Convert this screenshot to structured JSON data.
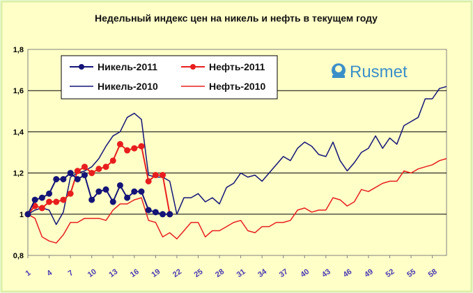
{
  "chart_data": {
    "type": "line",
    "title": "Недельный индекс цен на никель и нефть в текущем году",
    "xlabel": "",
    "ylabel": "",
    "ylim": [
      0.8,
      1.8
    ],
    "yticks": [
      "0,8",
      "1",
      "1,2",
      "1,4",
      "1,6",
      "1,8"
    ],
    "xlim": [
      1,
      60
    ],
    "xticks": [
      1,
      4,
      7,
      10,
      13,
      16,
      19,
      22,
      25,
      28,
      31,
      34,
      37,
      40,
      43,
      46,
      49,
      52,
      55,
      58
    ],
    "grid": "horizontal",
    "legend_position": "top-left",
    "logo": "Rusmet",
    "colors": {
      "background": "#ffffc8",
      "border": "#d8f0a8",
      "nickel": "#141478",
      "oil": "#e81e1e",
      "grid": "#000000"
    },
    "series": [
      {
        "name": "Никель-2011",
        "markers": true,
        "x": [
          1,
          2,
          3,
          4,
          5,
          6,
          7,
          8,
          9,
          10,
          11,
          12,
          13,
          14,
          15,
          16,
          17,
          18,
          19,
          20,
          21
        ],
        "values": [
          1.0,
          1.07,
          1.08,
          1.1,
          1.17,
          1.17,
          1.2,
          1.17,
          1.19,
          1.07,
          1.11,
          1.12,
          1.06,
          1.14,
          1.08,
          1.11,
          1.11,
          1.02,
          1.01,
          1.0,
          1.0
        ]
      },
      {
        "name": "Нефть-2011",
        "markers": true,
        "x": [
          1,
          2,
          3,
          4,
          5,
          6,
          7,
          8,
          9,
          10,
          11,
          12,
          13,
          14,
          15,
          16,
          17,
          18,
          19,
          20,
          21
        ],
        "values": [
          1.0,
          1.04,
          1.03,
          1.06,
          1.06,
          1.07,
          1.1,
          1.21,
          1.23,
          1.2,
          1.22,
          1.23,
          1.26,
          1.34,
          1.31,
          1.32,
          1.33,
          1.16,
          1.19,
          1.19,
          1.0
        ]
      },
      {
        "name": "Никель-2010",
        "markers": false,
        "x": [
          1,
          2,
          3,
          4,
          5,
          6,
          7,
          8,
          9,
          10,
          11,
          12,
          13,
          14,
          15,
          16,
          17,
          18,
          19,
          20,
          21,
          22,
          23,
          24,
          25,
          26,
          27,
          28,
          29,
          30,
          31,
          32,
          33,
          34,
          35,
          36,
          37,
          38,
          39,
          40,
          41,
          42,
          43,
          44,
          45,
          46,
          47,
          48,
          49,
          50,
          51,
          52,
          53,
          54,
          55,
          56,
          57,
          58,
          59,
          60
        ],
        "values": [
          1.0,
          1.02,
          1.03,
          1.02,
          0.95,
          1.01,
          1.18,
          1.2,
          1.21,
          1.23,
          1.27,
          1.33,
          1.38,
          1.4,
          1.47,
          1.49,
          1.46,
          1.19,
          1.18,
          1.18,
          1.16,
          1.0,
          1.08,
          1.08,
          1.1,
          1.06,
          1.08,
          1.05,
          1.13,
          1.15,
          1.2,
          1.18,
          1.19,
          1.16,
          1.2,
          1.24,
          1.28,
          1.26,
          1.32,
          1.35,
          1.33,
          1.29,
          1.28,
          1.35,
          1.26,
          1.21,
          1.25,
          1.3,
          1.32,
          1.38,
          1.32,
          1.37,
          1.34,
          1.43,
          1.45,
          1.47,
          1.56,
          1.56,
          1.61,
          1.62
        ]
      },
      {
        "name": "Нефть-2010",
        "markers": false,
        "x": [
          1,
          2,
          3,
          4,
          5,
          6,
          7,
          8,
          9,
          10,
          11,
          12,
          13,
          14,
          15,
          16,
          17,
          18,
          19,
          20,
          21,
          22,
          23,
          24,
          25,
          26,
          27,
          28,
          29,
          30,
          31,
          32,
          33,
          34,
          35,
          36,
          37,
          38,
          39,
          40,
          41,
          42,
          43,
          44,
          45,
          46,
          47,
          48,
          49,
          50,
          51,
          52,
          53,
          54,
          55,
          56,
          57,
          58,
          59,
          60
        ],
        "values": [
          1.0,
          0.98,
          0.89,
          0.87,
          0.86,
          0.9,
          0.96,
          0.96,
          0.98,
          0.98,
          0.98,
          0.97,
          1.02,
          1.05,
          1.05,
          1.07,
          1.08,
          0.97,
          0.96,
          0.89,
          0.91,
          0.88,
          0.92,
          0.96,
          0.96,
          0.89,
          0.92,
          0.92,
          0.94,
          0.96,
          0.97,
          0.92,
          0.91,
          0.94,
          0.94,
          0.96,
          0.96,
          0.97,
          1.02,
          1.03,
          1.01,
          1.02,
          1.02,
          1.08,
          1.07,
          1.04,
          1.06,
          1.12,
          1.11,
          1.13,
          1.15,
          1.16,
          1.16,
          1.21,
          1.2,
          1.22,
          1.23,
          1.24,
          1.26,
          1.27
        ]
      }
    ]
  }
}
